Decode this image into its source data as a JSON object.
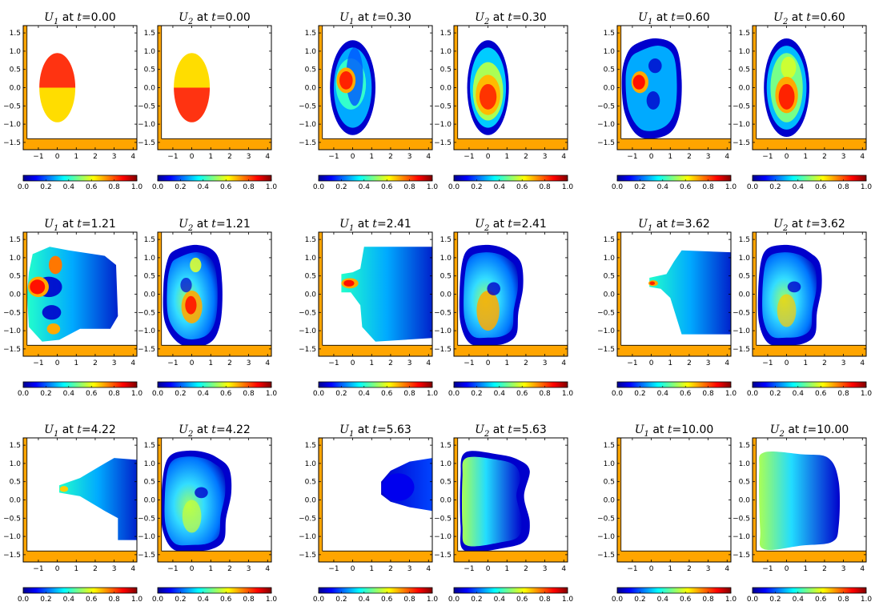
{
  "figure": {
    "colors": {
      "wall": "#ffa500",
      "colormap": "jet",
      "jet_stops": [
        "#00008f",
        "#0000ff",
        "#00ffff",
        "#ffff00",
        "#ff0000",
        "#800000"
      ]
    },
    "xticks": [
      "−1",
      "0",
      "1",
      "2",
      "3",
      "4"
    ],
    "yticks": [
      "1.5",
      "1.0",
      "0.5",
      "0.0",
      "−0.5",
      "−1.0",
      "−1.5"
    ],
    "cbar_ticks": [
      "0.0",
      "0.2",
      "0.4",
      "0.6",
      "0.8",
      "1.0"
    ]
  },
  "chart_data": [
    {
      "type": "heatmap",
      "var": "U",
      "sub": "1",
      "t": "0.00",
      "title_t": "=0.00",
      "xlim": [
        -1.8,
        4.2
      ],
      "ylim": [
        -1.7,
        1.7
      ],
      "clim": [
        0,
        1
      ],
      "colorbar": true,
      "grid": false
    },
    {
      "type": "heatmap",
      "var": "U",
      "sub": "2",
      "t": "0.00",
      "title_t": "=0.00",
      "xlim": [
        -1.8,
        4.2
      ],
      "ylim": [
        -1.7,
        1.7
      ],
      "clim": [
        0,
        1
      ],
      "colorbar": true,
      "grid": false
    },
    {
      "type": "heatmap",
      "var": "U",
      "sub": "1",
      "t": "0.30",
      "title_t": "=0.30",
      "xlim": [
        -1.8,
        4.2
      ],
      "ylim": [
        -1.7,
        1.7
      ],
      "clim": [
        0,
        1
      ],
      "colorbar": true,
      "grid": false
    },
    {
      "type": "heatmap",
      "var": "U",
      "sub": "2",
      "t": "0.30",
      "title_t": "=0.30",
      "xlim": [
        -1.8,
        4.2
      ],
      "ylim": [
        -1.7,
        1.7
      ],
      "clim": [
        0,
        1
      ],
      "colorbar": true,
      "grid": false
    },
    {
      "type": "heatmap",
      "var": "U",
      "sub": "1",
      "t": "0.60",
      "title_t": "=0.60",
      "xlim": [
        -1.8,
        4.2
      ],
      "ylim": [
        -1.7,
        1.7
      ],
      "clim": [
        0,
        1
      ],
      "colorbar": true,
      "grid": false
    },
    {
      "type": "heatmap",
      "var": "U",
      "sub": "2",
      "t": "0.60",
      "title_t": "=0.60",
      "xlim": [
        -1.8,
        4.2
      ],
      "ylim": [
        -1.7,
        1.7
      ],
      "clim": [
        0,
        1
      ],
      "colorbar": true,
      "grid": false
    },
    {
      "type": "heatmap",
      "var": "U",
      "sub": "1",
      "t": "1.21",
      "title_t": "=1.21",
      "xlim": [
        -1.8,
        4.2
      ],
      "ylim": [
        -1.7,
        1.7
      ],
      "clim": [
        0,
        1
      ],
      "colorbar": true,
      "grid": false
    },
    {
      "type": "heatmap",
      "var": "U",
      "sub": "2",
      "t": "1.21",
      "title_t": "=1.21",
      "xlim": [
        -1.8,
        4.2
      ],
      "ylim": [
        -1.7,
        1.7
      ],
      "clim": [
        0,
        1
      ],
      "colorbar": true,
      "grid": false
    },
    {
      "type": "heatmap",
      "var": "U",
      "sub": "1",
      "t": "2.41",
      "title_t": "=2.41",
      "xlim": [
        -1.8,
        4.2
      ],
      "ylim": [
        -1.7,
        1.7
      ],
      "clim": [
        0,
        1
      ],
      "colorbar": true,
      "grid": false
    },
    {
      "type": "heatmap",
      "var": "U",
      "sub": "2",
      "t": "2.41",
      "title_t": "=2.41",
      "xlim": [
        -1.8,
        4.2
      ],
      "ylim": [
        -1.7,
        1.7
      ],
      "clim": [
        0,
        1
      ],
      "colorbar": true,
      "grid": false
    },
    {
      "type": "heatmap",
      "var": "U",
      "sub": "1",
      "t": "3.62",
      "title_t": "=3.62",
      "xlim": [
        -1.8,
        4.2
      ],
      "ylim": [
        -1.7,
        1.7
      ],
      "clim": [
        0,
        1
      ],
      "colorbar": true,
      "grid": false
    },
    {
      "type": "heatmap",
      "var": "U",
      "sub": "2",
      "t": "3.62",
      "title_t": "=3.62",
      "xlim": [
        -1.8,
        4.2
      ],
      "ylim": [
        -1.7,
        1.7
      ],
      "clim": [
        0,
        1
      ],
      "colorbar": true,
      "grid": false
    },
    {
      "type": "heatmap",
      "var": "U",
      "sub": "1",
      "t": "4.22",
      "title_t": "=4.22",
      "xlim": [
        -1.8,
        4.2
      ],
      "ylim": [
        -1.7,
        1.7
      ],
      "clim": [
        0,
        1
      ],
      "colorbar": true,
      "grid": false
    },
    {
      "type": "heatmap",
      "var": "U",
      "sub": "2",
      "t": "4.22",
      "title_t": "=4.22",
      "xlim": [
        -1.8,
        4.2
      ],
      "ylim": [
        -1.7,
        1.7
      ],
      "clim": [
        0,
        1
      ],
      "colorbar": true,
      "grid": false
    },
    {
      "type": "heatmap",
      "var": "U",
      "sub": "1",
      "t": "5.63",
      "title_t": "=5.63",
      "xlim": [
        -1.8,
        4.2
      ],
      "ylim": [
        -1.7,
        1.7
      ],
      "clim": [
        0,
        1
      ],
      "colorbar": true,
      "grid": false
    },
    {
      "type": "heatmap",
      "var": "U",
      "sub": "2",
      "t": "5.63",
      "title_t": "=5.63",
      "xlim": [
        -1.8,
        4.2
      ],
      "ylim": [
        -1.7,
        1.7
      ],
      "clim": [
        0,
        1
      ],
      "colorbar": true,
      "grid": false
    },
    {
      "type": "heatmap",
      "var": "U",
      "sub": "1",
      "t": "10.00",
      "title_t": "=10.00",
      "xlim": [
        -1.8,
        4.2
      ],
      "ylim": [
        -1.7,
        1.7
      ],
      "clim": [
        0,
        1
      ],
      "colorbar": true,
      "grid": false
    },
    {
      "type": "heatmap",
      "var": "U",
      "sub": "2",
      "t": "10.00",
      "title_t": "=10.00",
      "xlim": [
        -1.8,
        4.2
      ],
      "ylim": [
        -1.7,
        1.7
      ],
      "clim": [
        0,
        1
      ],
      "colorbar": true,
      "grid": false
    }
  ]
}
